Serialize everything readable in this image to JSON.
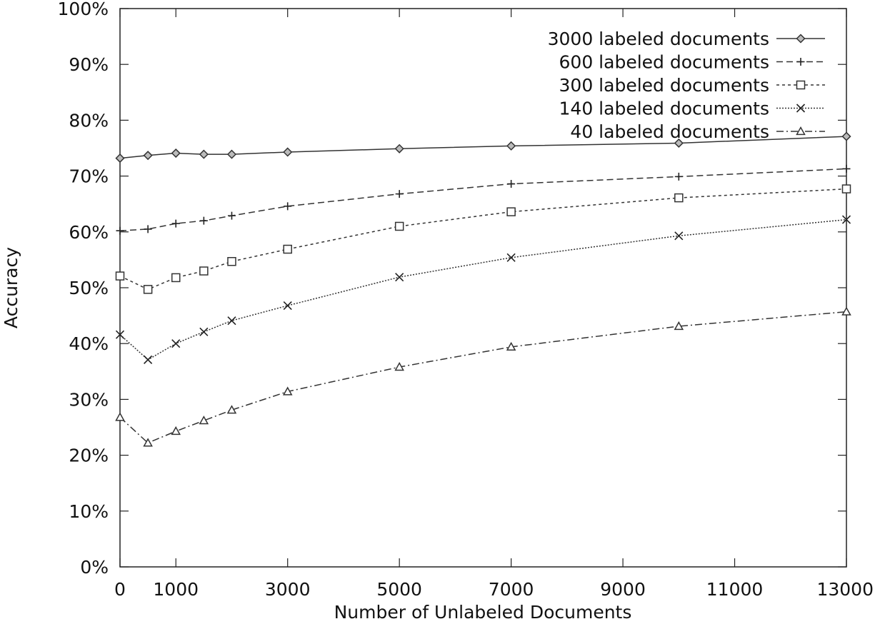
{
  "chart_data": {
    "type": "line",
    "title": "",
    "xlabel": "Number of Unlabeled Documents",
    "ylabel": "Accuracy",
    "xlim": [
      0,
      13000
    ],
    "ylim": [
      0,
      100
    ],
    "x_ticks": [
      0,
      1000,
      3000,
      5000,
      7000,
      9000,
      11000,
      13000
    ],
    "x_tick_labels": [
      "0",
      "1000",
      "3000",
      "5000",
      "7000",
      "9000",
      "11000",
      "13000"
    ],
    "y_ticks": [
      0,
      10,
      20,
      30,
      40,
      50,
      60,
      70,
      80,
      90,
      100
    ],
    "y_tick_labels": [
      "0%",
      "10%",
      "20%",
      "30%",
      "40%",
      "50%",
      "60%",
      "70%",
      "80%",
      "90%",
      "100%"
    ],
    "grid": false,
    "legend_position": "top-right",
    "x": [
      0,
      500,
      1000,
      1500,
      2000,
      3000,
      5000,
      7000,
      10000,
      13000
    ],
    "series": [
      {
        "name": "3000 labeled documents",
        "marker": "diamond",
        "dash": "solid",
        "values": [
          73.2,
          73.7,
          74.1,
          73.9,
          73.9,
          74.3,
          74.9,
          75.4,
          75.9,
          77.1
        ]
      },
      {
        "name": "600 labeled documents",
        "marker": "plus",
        "dash": "dashed",
        "values": [
          60.2,
          60.5,
          61.5,
          62.0,
          62.9,
          64.6,
          66.8,
          68.6,
          69.9,
          71.3
        ]
      },
      {
        "name": "300 labeled documents",
        "marker": "square",
        "dash": "dotted",
        "values": [
          52.1,
          49.7,
          51.8,
          53.0,
          54.7,
          56.9,
          61.0,
          63.6,
          66.1,
          67.7
        ]
      },
      {
        "name": "140 labeled documents",
        "marker": "cross",
        "dash": "fine-dotted",
        "values": [
          41.6,
          37.1,
          40.0,
          42.1,
          44.1,
          46.8,
          51.9,
          55.4,
          59.3,
          62.2
        ]
      },
      {
        "name": "40 labeled documents",
        "marker": "triangle",
        "dash": "dash-dot",
        "values": [
          26.8,
          22.2,
          24.3,
          26.2,
          28.1,
          31.4,
          35.8,
          39.4,
          43.1,
          45.7
        ]
      }
    ]
  }
}
